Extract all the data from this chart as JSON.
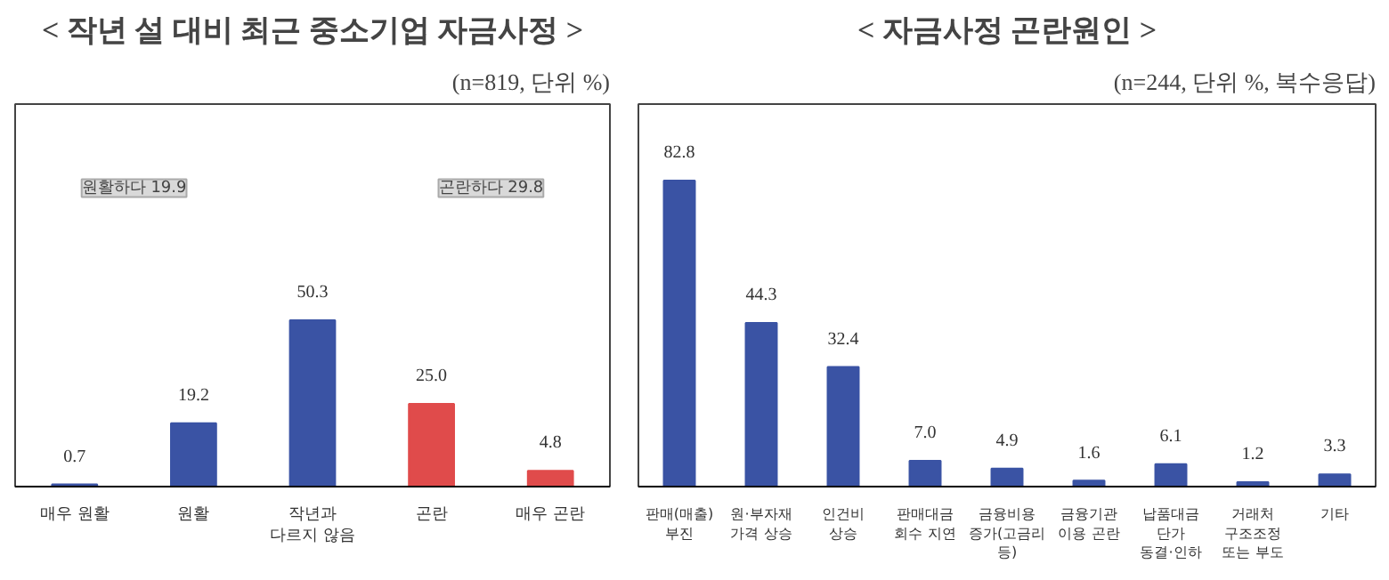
{
  "chart_data": [
    {
      "type": "bar",
      "title": "< 작년 설 대비 최근 중소기업 자금사정 >",
      "subtitle": "(n=819, 단위 %)",
      "categories": [
        "매우 원활",
        "원활",
        "작년과\n다르지 않음",
        "곤란",
        "매우 곤란"
      ],
      "values": [
        0.7,
        19.2,
        50.3,
        25.0,
        4.8
      ],
      "colors": [
        "#3a53a4",
        "#3a53a4",
        "#3a53a4",
        "#e04b4b",
        "#e04b4b"
      ],
      "value_labels": [
        "0.7",
        "19.2",
        "50.3",
        "25.0",
        "4.8"
      ],
      "grid": false,
      "tick_labels": "x",
      "annotations": [
        "원활하다 19.9",
        "곤란하다 29.8"
      ]
    },
    {
      "type": "bar",
      "title": "< 자금사정 곤란원인 >",
      "subtitle": "(n=244, 단위 %, 복수응답)",
      "categories": [
        "판매(매출)\n부진",
        "원·부자재\n가격 상승",
        "인건비\n상승",
        "판매대금\n회수 지연",
        "금융비용\n증가(고금리\n등)",
        "금융기관\n이용 곤란",
        "납품대금\n단가\n동결·인하",
        "거래처\n구조조정\n또는 부도",
        "기타"
      ],
      "values": [
        82.8,
        44.3,
        32.4,
        7.0,
        4.9,
        1.6,
        6.1,
        1.2,
        3.3
      ],
      "color": "#3a53a4",
      "value_labels": [
        "82.8",
        "44.3",
        "32.4",
        "7.0",
        "4.9",
        "1.6",
        "6.1",
        "1.2",
        "3.3"
      ],
      "grid": false,
      "tick_labels": "x"
    }
  ]
}
